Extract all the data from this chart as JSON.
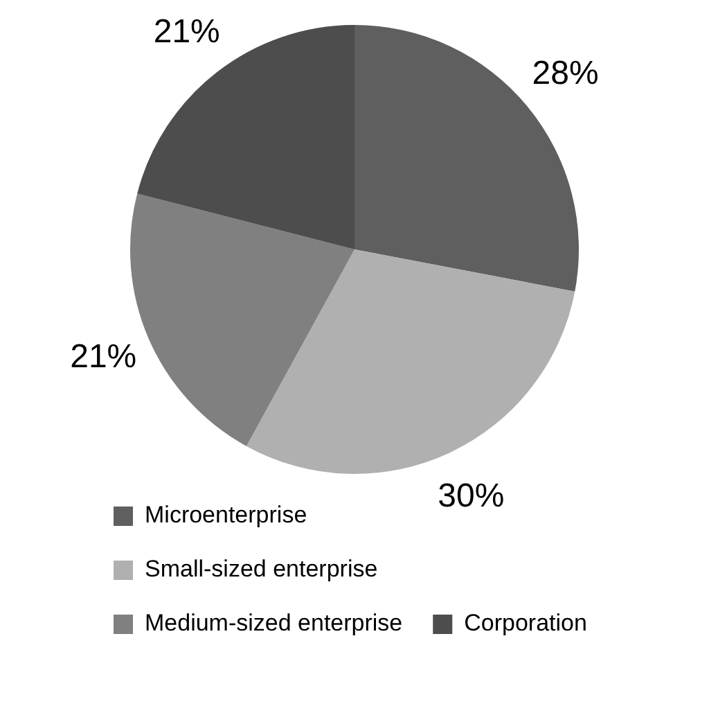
{
  "chart_data": {
    "type": "pie",
    "categories": [
      "Microenterprise",
      "Small-sized enterprise",
      "Medium-sized enterprise",
      "Corporation"
    ],
    "values": [
      28,
      30,
      21,
      21
    ],
    "colors": [
      "#5f5f5f",
      "#b0b0b0",
      "#808080",
      "#4d4d4d"
    ],
    "value_labels": [
      "28%",
      "30%",
      "21%",
      "21%"
    ],
    "legend": "bottom"
  }
}
